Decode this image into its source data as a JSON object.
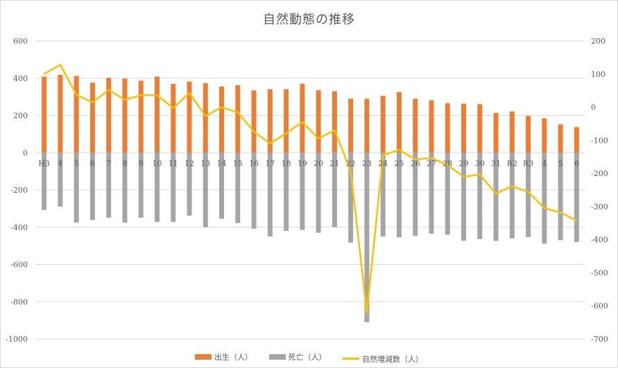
{
  "chart_data": {
    "type": "bar",
    "title": "自然動態の推移",
    "categories": [
      "H3",
      "4",
      "5",
      "6",
      "7",
      "8",
      "9",
      "10",
      "11",
      "12",
      "13",
      "14",
      "15",
      "16",
      "17",
      "18",
      "19",
      "20",
      "21",
      "22",
      "23",
      "24",
      "25",
      "26",
      "27",
      "28",
      "29",
      "30",
      "31",
      "R2",
      "R3",
      "4",
      "5",
      "6"
    ],
    "y_left_ticks": [
      "600",
      "400",
      "200",
      "0",
      "-200",
      "-400",
      "-600",
      "-800",
      "-1000"
    ],
    "y_right_ticks": [
      "200",
      "100",
      "0",
      "-100",
      "-200",
      "-300",
      "-400",
      "-500",
      "-600",
      "-700"
    ],
    "ylim_left": [
      -1000,
      600
    ],
    "ylim_right": [
      -700,
      200
    ],
    "grid": true,
    "legend_position": "bottom",
    "series": [
      {
        "name": "出生（人）",
        "type": "bar",
        "axis": "left",
        "color": "#ed7d31",
        "values": [
          408,
          418,
          412,
          376,
          402,
          398,
          386,
          408,
          369,
          381,
          373,
          355,
          362,
          334,
          340,
          341,
          370,
          335,
          330,
          290,
          289,
          305,
          325,
          289,
          281,
          265,
          263,
          260,
          213,
          221,
          197,
          184,
          152,
          137
        ]
      },
      {
        "name": "死亡（人）",
        "type": "bar",
        "axis": "left",
        "color": "#a5a5a5",
        "values": [
          -308,
          -290,
          -375,
          -362,
          -350,
          -376,
          -350,
          -372,
          -372,
          -338,
          -400,
          -355,
          -378,
          -408,
          -450,
          -420,
          -415,
          -430,
          -400,
          -483,
          -910,
          -450,
          -454,
          -447,
          -435,
          -440,
          -473,
          -464,
          -474,
          -460,
          -453,
          -489,
          -470,
          -480
        ]
      },
      {
        "name": "自然増減数（人）",
        "type": "line",
        "axis": "right",
        "color": "#ffc000",
        "values": [
          100,
          128,
          37,
          14,
          52,
          22,
          36,
          36,
          -3,
          43,
          -27,
          0,
          -16,
          -74,
          -110,
          -79,
          -45,
          -95,
          -70,
          -193,
          -621,
          -145,
          -129,
          -158,
          -154,
          -175,
          -210,
          -204,
          -261,
          -239,
          -256,
          -305,
          -318,
          -343
        ]
      }
    ]
  }
}
